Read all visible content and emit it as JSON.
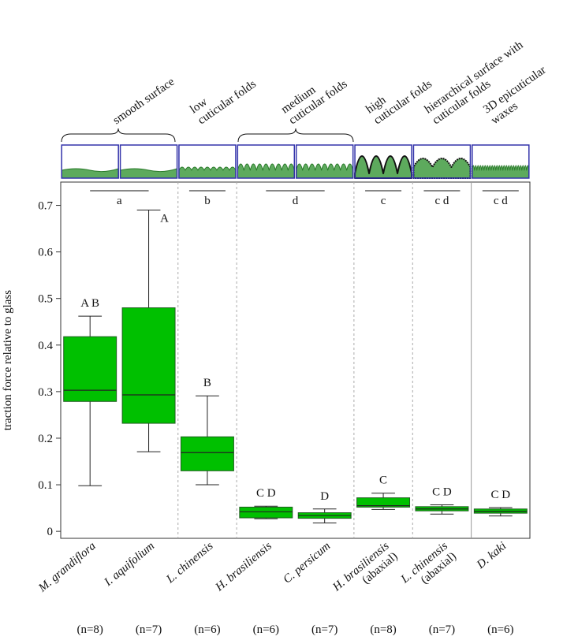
{
  "chart_data": {
    "type": "box",
    "y_label": "traction force relative to glass",
    "categories": [
      "M. grandiflora",
      "I. aquifolium",
      "L. chinensis",
      "H. brasiliensis",
      "C. persicum",
      "H. brasiliensis",
      "L. chinensis",
      "D. kaki"
    ],
    "category_notes": [
      null,
      null,
      null,
      null,
      null,
      "(abaxial)",
      "(abaxial)",
      null
    ],
    "sample_sizes": [
      "(n=8)",
      "(n=7)",
      "(n=6)",
      "(n=6)",
      "(n=7)",
      "(n=8)",
      "(n=7)",
      "(n=6)"
    ],
    "boxes": [
      {
        "whislo": 0.098,
        "q1": 0.279,
        "median": 0.303,
        "q3": 0.418,
        "whishi": 0.462
      },
      {
        "whislo": 0.171,
        "q1": 0.232,
        "median": 0.293,
        "q3": 0.48,
        "whishi": 0.69
      },
      {
        "whislo": 0.1,
        "q1": 0.13,
        "median": 0.169,
        "q3": 0.203,
        "whishi": 0.291
      },
      {
        "whislo": 0.027,
        "q1": 0.029,
        "median": 0.042,
        "q3": 0.052,
        "whishi": 0.054
      },
      {
        "whislo": 0.018,
        "q1": 0.028,
        "median": 0.034,
        "q3": 0.04,
        "whishi": 0.048
      },
      {
        "whislo": 0.047,
        "q1": 0.052,
        "median": 0.055,
        "q3": 0.072,
        "whishi": 0.082
      },
      {
        "whislo": 0.037,
        "q1": 0.044,
        "median": 0.048,
        "q3": 0.053,
        "whishi": 0.057
      },
      {
        "whislo": 0.033,
        "q1": 0.039,
        "median": 0.043,
        "q3": 0.048,
        "whishi": 0.051
      }
    ],
    "box_letters": [
      "A B",
      "A",
      "B",
      "C D",
      "D",
      "C",
      "C D",
      "C D"
    ],
    "group_letters": [
      "a",
      "b",
      "d",
      "c",
      "c d",
      "c d"
    ],
    "surface_labels": [
      [
        "smooth surface"
      ],
      [
        "low",
        "cuticular folds"
      ],
      [
        "medium",
        "cuticular folds"
      ],
      [
        "high",
        "cuticular folds"
      ],
      [
        "hierarchical surface with",
        "cuticular folds"
      ],
      [
        "3D epicuticular",
        "waxes"
      ]
    ],
    "color": "#00c000",
    "edge_color": "#1f5e1f",
    "ylim": [
      -0.015,
      0.75
    ],
    "yticks": [
      0,
      0.1,
      0.2,
      0.3,
      0.4,
      0.5,
      0.6,
      0.7
    ]
  }
}
